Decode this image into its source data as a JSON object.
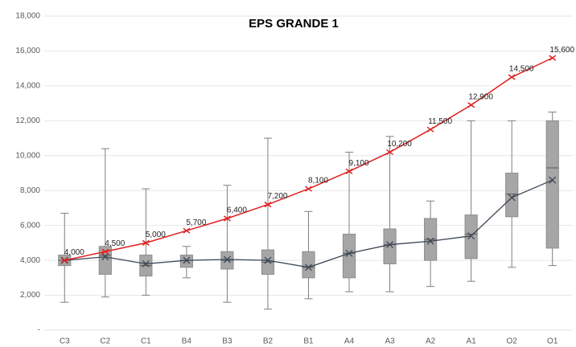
{
  "chart_data": {
    "type": "box",
    "title": "EPS GRANDE 1",
    "categories": [
      "C3",
      "C2",
      "C1",
      "B4",
      "B3",
      "B2",
      "B1",
      "A4",
      "A3",
      "A2",
      "A1",
      "O2",
      "O1"
    ],
    "ylim": [
      0,
      18000
    ],
    "yticks": [
      {
        "value": 0,
        "label": "-"
      },
      {
        "value": 2000,
        "label": "2,000"
      },
      {
        "value": 4000,
        "label": "4,000"
      },
      {
        "value": 6000,
        "label": "6,000"
      },
      {
        "value": 8000,
        "label": "8,000"
      },
      {
        "value": 10000,
        "label": "10,000"
      },
      {
        "value": 12000,
        "label": "12,000"
      },
      {
        "value": 14000,
        "label": "14,000"
      },
      {
        "value": 16000,
        "label": "16,000"
      },
      {
        "value": 18000,
        "label": "18,000"
      }
    ],
    "grid": true,
    "box": {
      "color": "#a6a6a6",
      "mean_color": "#3b4654",
      "min": [
        1600,
        1900,
        2000,
        3000,
        1600,
        1200,
        1800,
        2200,
        2200,
        2500,
        2800,
        3600,
        3700
      ],
      "q1": [
        3700,
        3200,
        3100,
        3600,
        3500,
        3200,
        3000,
        3000,
        3800,
        4000,
        4100,
        6500,
        4700
      ],
      "median": [
        4000,
        4300,
        3700,
        4000,
        4000,
        3900,
        3600,
        4400,
        4900,
        5200,
        5500,
        7800,
        9300
      ],
      "q3": [
        4300,
        4800,
        4300,
        4300,
        4500,
        4600,
        4500,
        5500,
        5800,
        6400,
        6600,
        9000,
        12000
      ],
      "max": [
        6700,
        10400,
        8100,
        4800,
        8300,
        11000,
        6800,
        10200,
        11100,
        7400,
        12000,
        12000,
        12500
      ],
      "mean": [
        4000,
        4200,
        3800,
        4000,
        4050,
        4000,
        3600,
        4400,
        4900,
        5100,
        5400,
        7600,
        8600
      ]
    },
    "line": {
      "color": "#e02020",
      "values": [
        4000,
        4500,
        5000,
        5700,
        6400,
        7200,
        8100,
        9100,
        10200,
        11500,
        12900,
        14500,
        15600
      ],
      "value_labels": [
        "4,000",
        "4,500",
        "5,000",
        "5,700",
        "6,400",
        "7,200",
        "8,100",
        "9,100",
        "10,200",
        "11,500",
        "12,900",
        "14,500",
        "15,600"
      ]
    }
  }
}
